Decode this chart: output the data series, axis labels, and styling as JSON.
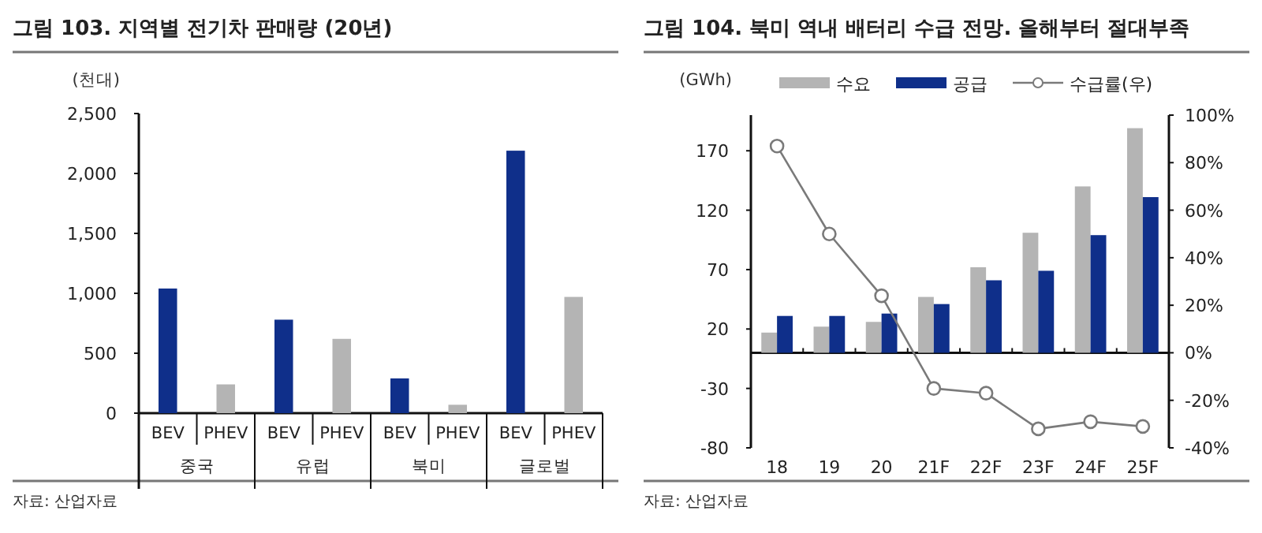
{
  "chart_data": [
    {
      "type": "bar",
      "title": "그림 103. 지역별 전기차 판매량 (20년)",
      "ylabel": "(천대)",
      "categories": [
        "중국",
        "유럽",
        "북미",
        "글로벌"
      ],
      "series": [
        {
          "name": "BEV",
          "color": "#0f2f8a",
          "values": [
            1040,
            780,
            290,
            2190
          ]
        },
        {
          "name": "PHEV",
          "color": "#b4b4b4",
          "values": [
            240,
            620,
            70,
            970
          ]
        }
      ],
      "ylim": [
        0,
        2500
      ],
      "yticks": [
        0,
        500,
        {
          "value": 1000,
          "label": "1,000"
        },
        {
          "value": 1500,
          "label": "1,500"
        },
        {
          "value": 2000,
          "label": "2,000"
        },
        {
          "value": 2500,
          "label": "2,500"
        }
      ],
      "annotations": [
        "자료: 산업자료"
      ]
    },
    {
      "type": "bar",
      "title": "그림 104. 북미 역내 배터리 수급 전망. 올해부터 절대부족",
      "ylabel": "(GWh)",
      "categories": [
        "18",
        "19",
        "20",
        "21F",
        "22F",
        "23F",
        "24F",
        "25F"
      ],
      "series": [
        {
          "name": "수요",
          "color": "#b4b4b4",
          "values": [
            17,
            22,
            26,
            47,
            72,
            101,
            140,
            189
          ]
        },
        {
          "name": "공급",
          "color": "#0f2f8a",
          "values": [
            31,
            31,
            33,
            41,
            61,
            69,
            99,
            131
          ]
        },
        {
          "name": "수급률(우)",
          "type": "line",
          "axis": "y2",
          "marker": "circle",
          "color": "#7a7a7a",
          "values": [
            87,
            50,
            24,
            -15,
            -17,
            -32,
            -29,
            -31
          ]
        }
      ],
      "ylim": [
        -80,
        200
      ],
      "yticks": [
        -80,
        -30,
        20,
        70,
        120,
        170
      ],
      "y2lim": [
        -40,
        100
      ],
      "y2ticks": [
        {
          "value": -40,
          "label": "-40%"
        },
        {
          "value": -20,
          "label": "-20%"
        },
        {
          "value": 0,
          "label": "0%"
        },
        {
          "value": 20,
          "label": "20%"
        },
        {
          "value": 40,
          "label": "40%"
        },
        {
          "value": 60,
          "label": "60%"
        },
        {
          "value": 80,
          "label": "80%"
        },
        {
          "value": 100,
          "label": "100%"
        }
      ],
      "legend": "top",
      "annotations": [
        "자료: 산업자료"
      ]
    }
  ]
}
